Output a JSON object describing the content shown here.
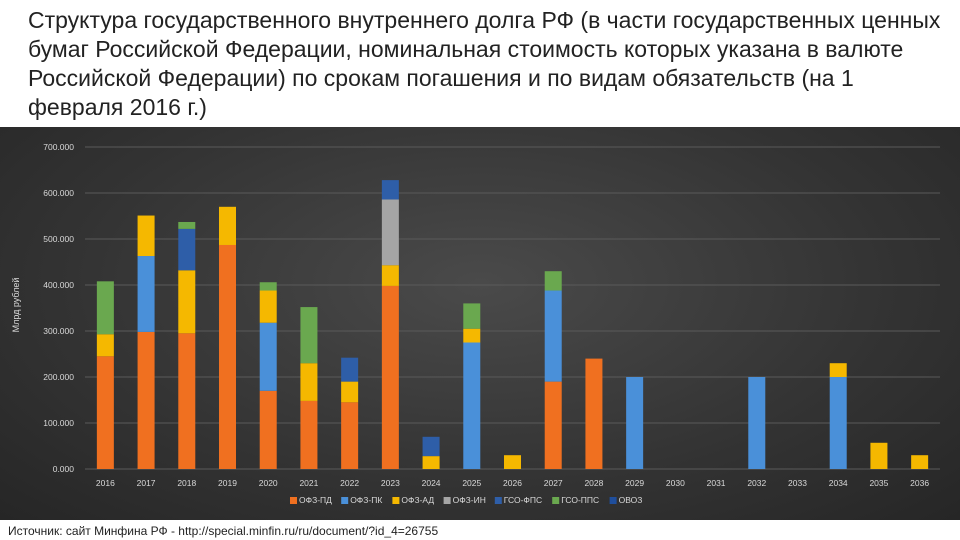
{
  "title": "Структура государственного внутреннего долга РФ (в части государственных ценных бумаг Российской Федерации, номинальная стоимость которых указана в валюте Российской Федерации) по срокам погашения и по видам обязательств (на 1 февраля 2016 г.)",
  "source": "Источник: сайт Минфина РФ - http://special.minfin.ru/ru/document/?id_4=26755",
  "chart_data": {
    "type": "bar",
    "stacked": true,
    "ylabel": "Млрд рублей",
    "ylim": [
      0,
      700
    ],
    "yticks": [
      "0.000",
      "100.000",
      "200.000",
      "300.000",
      "400.000",
      "500.000",
      "600.000",
      "700.000"
    ],
    "grid": true,
    "legend_position": "bottom",
    "categories": [
      "2016",
      "2017",
      "2018",
      "2019",
      "2020",
      "2021",
      "2022",
      "2023",
      "2024",
      "2025",
      "2026",
      "2027",
      "2028",
      "2029",
      "2030",
      "2031",
      "2032",
      "2033",
      "2034",
      "2035",
      "2036"
    ],
    "series": [
      {
        "name": "ОФЗ-ПД",
        "color": "#f07020",
        "values": [
          245,
          298,
          295,
          487,
          170,
          148,
          145,
          398,
          0,
          0,
          0,
          190,
          240,
          0,
          0,
          0,
          0,
          0,
          0,
          0,
          0
        ]
      },
      {
        "name": "ОФЗ-ПК",
        "color": "#4a90d9",
        "values": [
          0,
          165,
          0,
          0,
          148,
          0,
          0,
          0,
          0,
          275,
          0,
          198,
          0,
          200,
          0,
          0,
          200,
          0,
          200,
          0,
          0
        ]
      },
      {
        "name": "ОФЗ-АД",
        "color": "#f5b800",
        "values": [
          48,
          88,
          137,
          83,
          70,
          82,
          45,
          45,
          28,
          30,
          30,
          0,
          0,
          0,
          0,
          0,
          0,
          0,
          30,
          57,
          30
        ]
      },
      {
        "name": "ОФЗ-ИН",
        "color": "#a5a5a5",
        "values": [
          0,
          0,
          0,
          0,
          0,
          0,
          0,
          143,
          0,
          0,
          0,
          0,
          0,
          0,
          0,
          0,
          0,
          0,
          0,
          0,
          0
        ]
      },
      {
        "name": "ГСО-ФПС",
        "color": "#2e5ea8",
        "values": [
          0,
          0,
          90,
          0,
          0,
          0,
          52,
          42,
          42,
          0,
          0,
          0,
          0,
          0,
          0,
          0,
          0,
          0,
          0,
          0,
          0
        ]
      },
      {
        "name": "ГСО-ППС",
        "color": "#6aa84f",
        "values": [
          115,
          0,
          15,
          0,
          18,
          122,
          0,
          0,
          0,
          55,
          0,
          42,
          0,
          0,
          0,
          0,
          0,
          0,
          0,
          0,
          0
        ]
      },
      {
        "name": "ОВОЗ",
        "color": "#1f4e9c",
        "values": [
          0,
          0,
          0,
          0,
          0,
          0,
          0,
          0,
          0,
          0,
          0,
          0,
          0,
          0,
          0,
          0,
          0,
          0,
          0,
          0,
          0
        ]
      }
    ]
  }
}
